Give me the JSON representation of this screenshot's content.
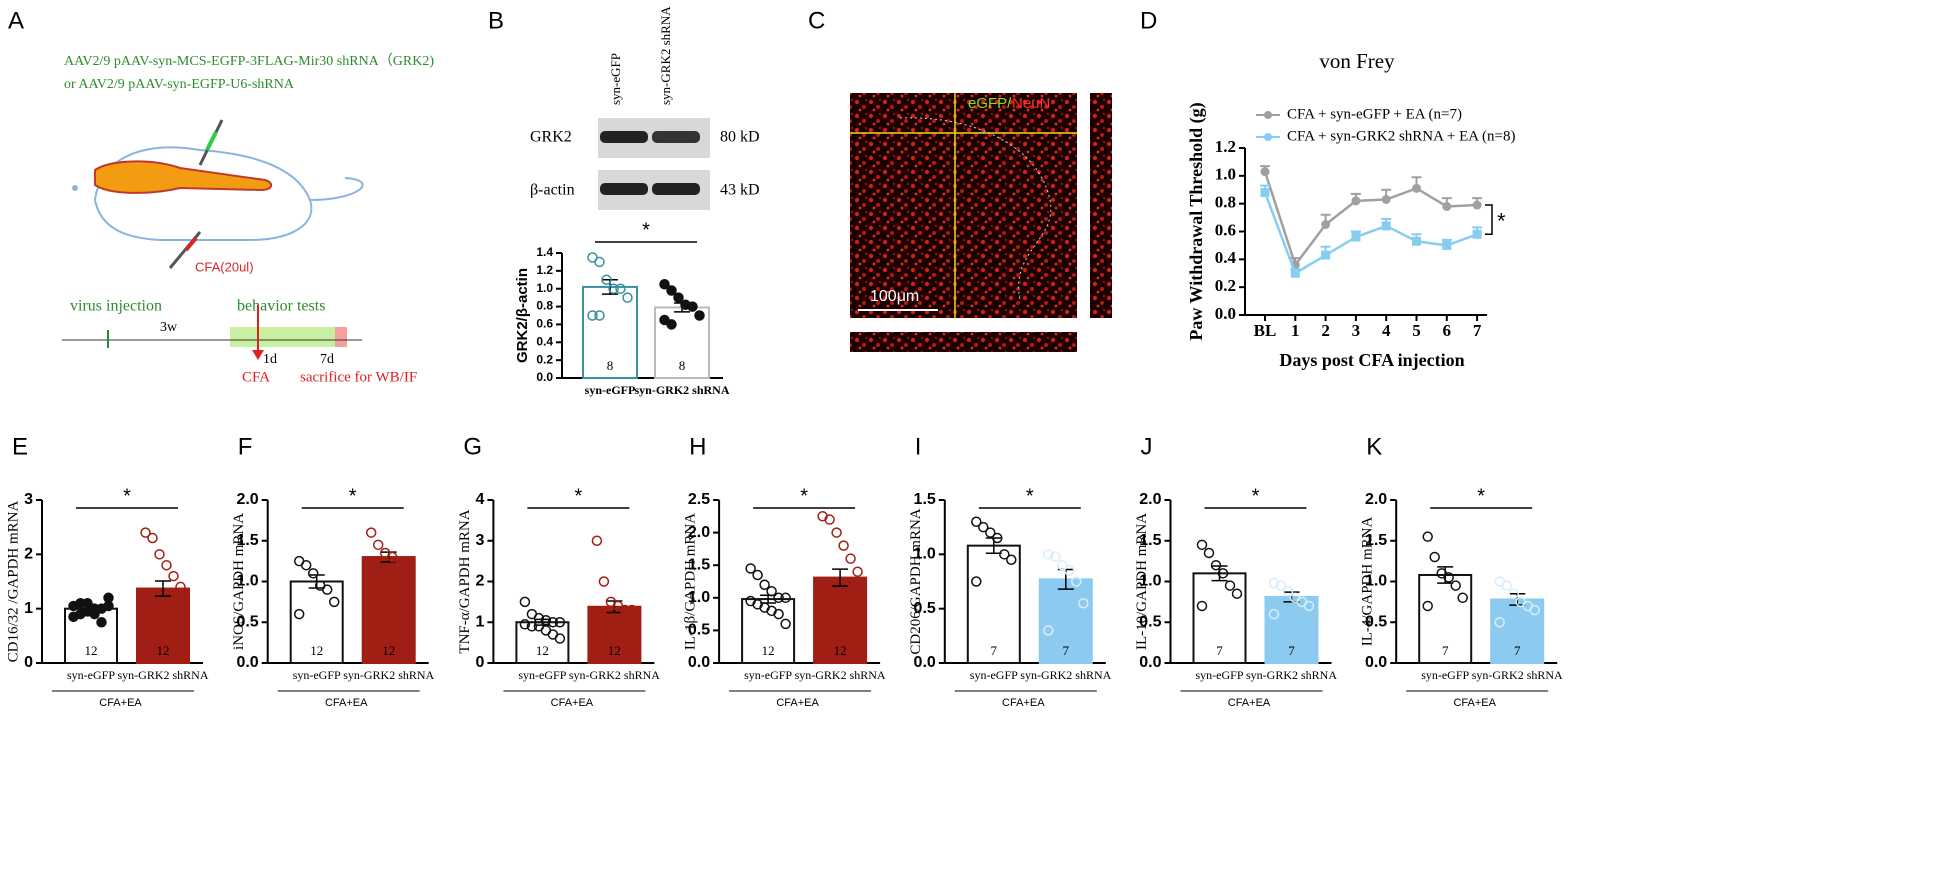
{
  "panel_a": {
    "letter": "A",
    "line1": "AAV2/9 pAAV-syn-MCS-EGFP-3FLAG-Mir30 shRNA（GRK2)",
    "line2": "or AAV2/9 pAAV-syn-EGFP-U6-shRNA",
    "cfa_dose": "CFA(20ul)",
    "virus": "virus injection",
    "behavior": "behavior tests",
    "weeks": "3w",
    "day1": "1d",
    "day7": "7d",
    "cfa": "CFA",
    "sacrifice": "sacrifice for WB/IF"
  },
  "panel_b_blot": {
    "letter": "B",
    "lane1": "syn-eGFP",
    "lane2": "syn-GRK2 shRNA",
    "row1": "GRK2",
    "row2": "β-actin",
    "size1": "80 kD",
    "size2": "43 kD"
  },
  "panel_c": {
    "letter": "C",
    "stain1": "eGFP/",
    "stain2": "NeuN",
    "scale": "100μm"
  },
  "chart_data": [
    {
      "type": "bar",
      "panel": "B",
      "ylabel": "GRK2/β-actin",
      "categories": [
        "syn-eGFP",
        "syn-GRK2 shRNA"
      ],
      "values": [
        1.02,
        0.79
      ],
      "errors": [
        0.08,
        0.05
      ],
      "n": [
        8,
        8
      ],
      "points": [
        [
          1.35,
          1.3,
          1.1,
          1.0,
          1.0,
          0.9,
          0.7,
          0.7
        ],
        [
          1.05,
          0.98,
          0.9,
          0.82,
          0.8,
          0.7,
          0.65,
          0.6
        ]
      ],
      "colors": [
        "#ffffff",
        "#ffffff"
      ],
      "edge_colors": [
        "#3a8fa0",
        "#bbbbbb"
      ],
      "point_colors": [
        "#3a8fa0",
        "#111111"
      ],
      "point_filled": [
        false,
        true
      ],
      "ylim": [
        0,
        1.4
      ],
      "yticks": [
        {
          "value": 0,
          "label": "0.0"
        },
        0.2,
        0.4,
        0.6,
        0.8,
        {
          "value": 1,
          "label": "1.0"
        },
        1.2,
        1.4
      ],
      "significance": "*"
    },
    {
      "type": "line",
      "panel": "D",
      "title": "von Frey",
      "ylabel": "Paw Withdrawal Threshold (g)",
      "xlabel": "Days post CFA injection",
      "categories": [
        "BL",
        "1",
        "2",
        "3",
        "4",
        "5",
        "6",
        "7"
      ],
      "series": [
        {
          "name": "CFA + syn-eGFP + EA (n=7)",
          "color": "#a0a0a0",
          "values": [
            1.03,
            0.36,
            0.65,
            0.82,
            0.83,
            0.91,
            0.78,
            0.79
          ],
          "errors": [
            0.04,
            0.05,
            0.07,
            0.05,
            0.07,
            0.08,
            0.06,
            0.05
          ]
        },
        {
          "name": "CFA + syn-GRK2 shRNA + EA (n=8)",
          "color": "#87cdf0",
          "values": [
            0.88,
            0.3,
            0.43,
            0.56,
            0.64,
            0.53,
            0.5,
            0.58
          ],
          "errors": [
            0.05,
            0.03,
            0.06,
            0.04,
            0.05,
            0.05,
            0.04,
            0.05
          ]
        }
      ],
      "ylim": [
        0,
        1.2
      ],
      "yticks": [
        {
          "value": 0,
          "label": "0.0"
        },
        0.2,
        0.4,
        0.6,
        0.8,
        {
          "value": 1,
          "label": "1.0"
        },
        1.2
      ],
      "significance": "*"
    },
    {
      "type": "bar",
      "panel": "E",
      "ylabel": "CD16/32 /GAPDH mRNA",
      "categories": [
        "syn-eGFP",
        "syn-GRK2 shRNA"
      ],
      "group_label": "CFA+EA",
      "values": [
        1.0,
        1.37
      ],
      "errors": [
        0.05,
        0.14
      ],
      "n": [
        12,
        12
      ],
      "points": [
        [
          0.85,
          0.9,
          0.95,
          1.0,
          1.0,
          1.05,
          1.05,
          1.1,
          1.1,
          0.9,
          0.75,
          1.2
        ],
        [
          2.4,
          2.3,
          2.0,
          1.8,
          1.6,
          1.4,
          1.2,
          1.0,
          0.95,
          0.9,
          0.85,
          1.0
        ]
      ],
      "colors": [
        "#ffffff",
        "#a01e14"
      ],
      "edge_colors": [
        "#111111",
        "#a01e14"
      ],
      "point_colors": [
        "#111111",
        "#a01e14"
      ],
      "point_filled": [
        true,
        false
      ],
      "ylim": [
        0,
        3
      ],
      "yticks": [
        0,
        1,
        2,
        3
      ],
      "significance": "*"
    },
    {
      "type": "bar",
      "panel": "F",
      "ylabel": "iNOS/GAPDH mRNA",
      "categories": [
        "syn-eGFP",
        "syn-GRK2 shRNA"
      ],
      "group_label": "CFA+EA",
      "values": [
        1.0,
        1.3
      ],
      "errors": [
        0.08,
        0.06
      ],
      "n": [
        12,
        12
      ],
      "points": [
        [
          1.25,
          1.2,
          1.1,
          0.95,
          0.9,
          0.75,
          0.6
        ],
        [
          1.6,
          1.45,
          1.35,
          1.3,
          1.2,
          1.15,
          1.05
        ]
      ],
      "colors": [
        "#ffffff",
        "#a01e14"
      ],
      "edge_colors": [
        "#111111",
        "#a01e14"
      ],
      "point_colors": [
        "#111111",
        "#a01e14"
      ],
      "point_filled": [
        false,
        false
      ],
      "ylim": [
        0,
        2
      ],
      "yticks": [
        {
          "value": 0,
          "label": "0.0"
        },
        0.5,
        {
          "value": 1,
          "label": "1.0"
        },
        1.5,
        {
          "value": 2,
          "label": "2.0"
        }
      ],
      "significance": "*"
    },
    {
      "type": "bar",
      "panel": "G",
      "ylabel": "TNF-α/GAPDH mRNA",
      "categories": [
        "syn-eGFP",
        "syn-GRK2 shRNA"
      ],
      "group_label": "CFA+EA",
      "values": [
        1.0,
        1.38
      ],
      "errors": [
        0.07,
        0.14
      ],
      "n": [
        12,
        12
      ],
      "points": [
        [
          1.5,
          1.2,
          1.1,
          1.05,
          1.0,
          1.0,
          0.95,
          0.9,
          0.9,
          0.8,
          0.7,
          0.6
        ],
        [
          3.0,
          2.0,
          1.5,
          1.4,
          1.3,
          1.2,
          1.1,
          1.0,
          0.9,
          0.9,
          0.8,
          1.3
        ]
      ],
      "colors": [
        "#ffffff",
        "#a01e14"
      ],
      "edge_colors": [
        "#111111",
        "#a01e14"
      ],
      "point_colors": [
        "#111111",
        "#a01e14"
      ],
      "point_filled": [
        false,
        false
      ],
      "ylim": [
        0,
        4
      ],
      "yticks": [
        0,
        1,
        2,
        3,
        4
      ],
      "significance": "*"
    },
    {
      "type": "bar",
      "panel": "H",
      "ylabel": "IL-1β/GAPDH mRNA",
      "categories": [
        "syn-eGFP",
        "syn-GRK2 shRNA"
      ],
      "group_label": "CFA+EA",
      "values": [
        0.98,
        1.31
      ],
      "errors": [
        0.06,
        0.13
      ],
      "n": [
        12,
        12
      ],
      "points": [
        [
          1.45,
          1.35,
          1.2,
          1.1,
          1.0,
          1.0,
          0.95,
          0.9,
          0.85,
          0.8,
          0.75,
          0.6
        ],
        [
          2.25,
          2.2,
          2.0,
          1.8,
          1.6,
          1.4,
          1.2,
          1.1,
          1.0,
          0.9,
          0.8,
          0.6
        ]
      ],
      "colors": [
        "#ffffff",
        "#a01e14"
      ],
      "edge_colors": [
        "#111111",
        "#a01e14"
      ],
      "point_colors": [
        "#111111",
        "#a01e14"
      ],
      "point_filled": [
        false,
        false
      ],
      "ylim": [
        0,
        2.5
      ],
      "yticks": [
        {
          "value": 0,
          "label": "0.0"
        },
        0.5,
        {
          "value": 1,
          "label": "1.0"
        },
        1.5,
        {
          "value": 2,
          "label": "2.0"
        },
        2.5
      ],
      "significance": "*"
    },
    {
      "type": "bar",
      "panel": "I",
      "ylabel": "CD206/GAPDH mRNA",
      "categories": [
        "syn-eGFP",
        "syn-GRK2 shRNA"
      ],
      "group_label": "CFA+EA",
      "values": [
        1.08,
        0.77
      ],
      "errors": [
        0.07,
        0.09
      ],
      "n": [
        7,
        7
      ],
      "points": [
        [
          1.3,
          1.25,
          1.2,
          1.15,
          1.0,
          0.95,
          0.75
        ],
        [
          1.0,
          0.98,
          0.9,
          0.85,
          0.75,
          0.55,
          0.3
        ]
      ],
      "colors": [
        "#ffffff",
        "#8ccbef"
      ],
      "edge_colors": [
        "#111111",
        "#8ccbef"
      ],
      "point_colors": [
        "#111111",
        "#d8eef9"
      ],
      "point_filled": [
        false,
        false
      ],
      "ylim": [
        0,
        1.5
      ],
      "yticks": [
        {
          "value": 0,
          "label": "0.0"
        },
        0.5,
        {
          "value": 1,
          "label": "1.0"
        },
        1.5
      ],
      "significance": "*"
    },
    {
      "type": "bar",
      "panel": "J",
      "ylabel": "IL-10/GAPDH mRNA",
      "categories": [
        "syn-eGFP",
        "syn-GRK2 shRNA"
      ],
      "group_label": "CFA+EA",
      "values": [
        1.1,
        0.81
      ],
      "errors": [
        0.09,
        0.06
      ],
      "n": [
        7,
        7
      ],
      "points": [
        [
          1.45,
          1.35,
          1.2,
          1.1,
          0.95,
          0.85,
          0.7
        ],
        [
          0.98,
          0.95,
          0.88,
          0.8,
          0.75,
          0.7,
          0.6
        ]
      ],
      "colors": [
        "#ffffff",
        "#8ccbef"
      ],
      "edge_colors": [
        "#111111",
        "#8ccbef"
      ],
      "point_colors": [
        "#111111",
        "#d8eef9"
      ],
      "point_filled": [
        false,
        false
      ],
      "ylim": [
        0,
        2
      ],
      "yticks": [
        {
          "value": 0,
          "label": "0.0"
        },
        0.5,
        {
          "value": 1,
          "label": "1.0"
        },
        1.5,
        {
          "value": 2,
          "label": "2.0"
        }
      ],
      "significance": "*"
    },
    {
      "type": "bar",
      "panel": "K",
      "ylabel": "IL-4/GAPDH mRNA",
      "categories": [
        "syn-eGFP",
        "syn-GRK2 shRNA"
      ],
      "group_label": "CFA+EA",
      "values": [
        1.08,
        0.78
      ],
      "errors": [
        0.1,
        0.07
      ],
      "n": [
        7,
        7
      ],
      "points": [
        [
          1.55,
          1.3,
          1.1,
          1.05,
          0.95,
          0.8,
          0.7
        ],
        [
          1.0,
          0.95,
          0.85,
          0.75,
          0.7,
          0.65,
          0.5
        ]
      ],
      "colors": [
        "#ffffff",
        "#8ccbef"
      ],
      "edge_colors": [
        "#111111",
        "#8ccbef"
      ],
      "point_colors": [
        "#111111",
        "#d8eef9"
      ],
      "point_filled": [
        false,
        false
      ],
      "ylim": [
        0,
        2
      ],
      "yticks": [
        {
          "value": 0,
          "label": "0.0"
        },
        0.5,
        {
          "value": 1,
          "label": "1.0"
        },
        1.5,
        {
          "value": 2,
          "label": "2.0"
        }
      ],
      "significance": "*"
    }
  ]
}
